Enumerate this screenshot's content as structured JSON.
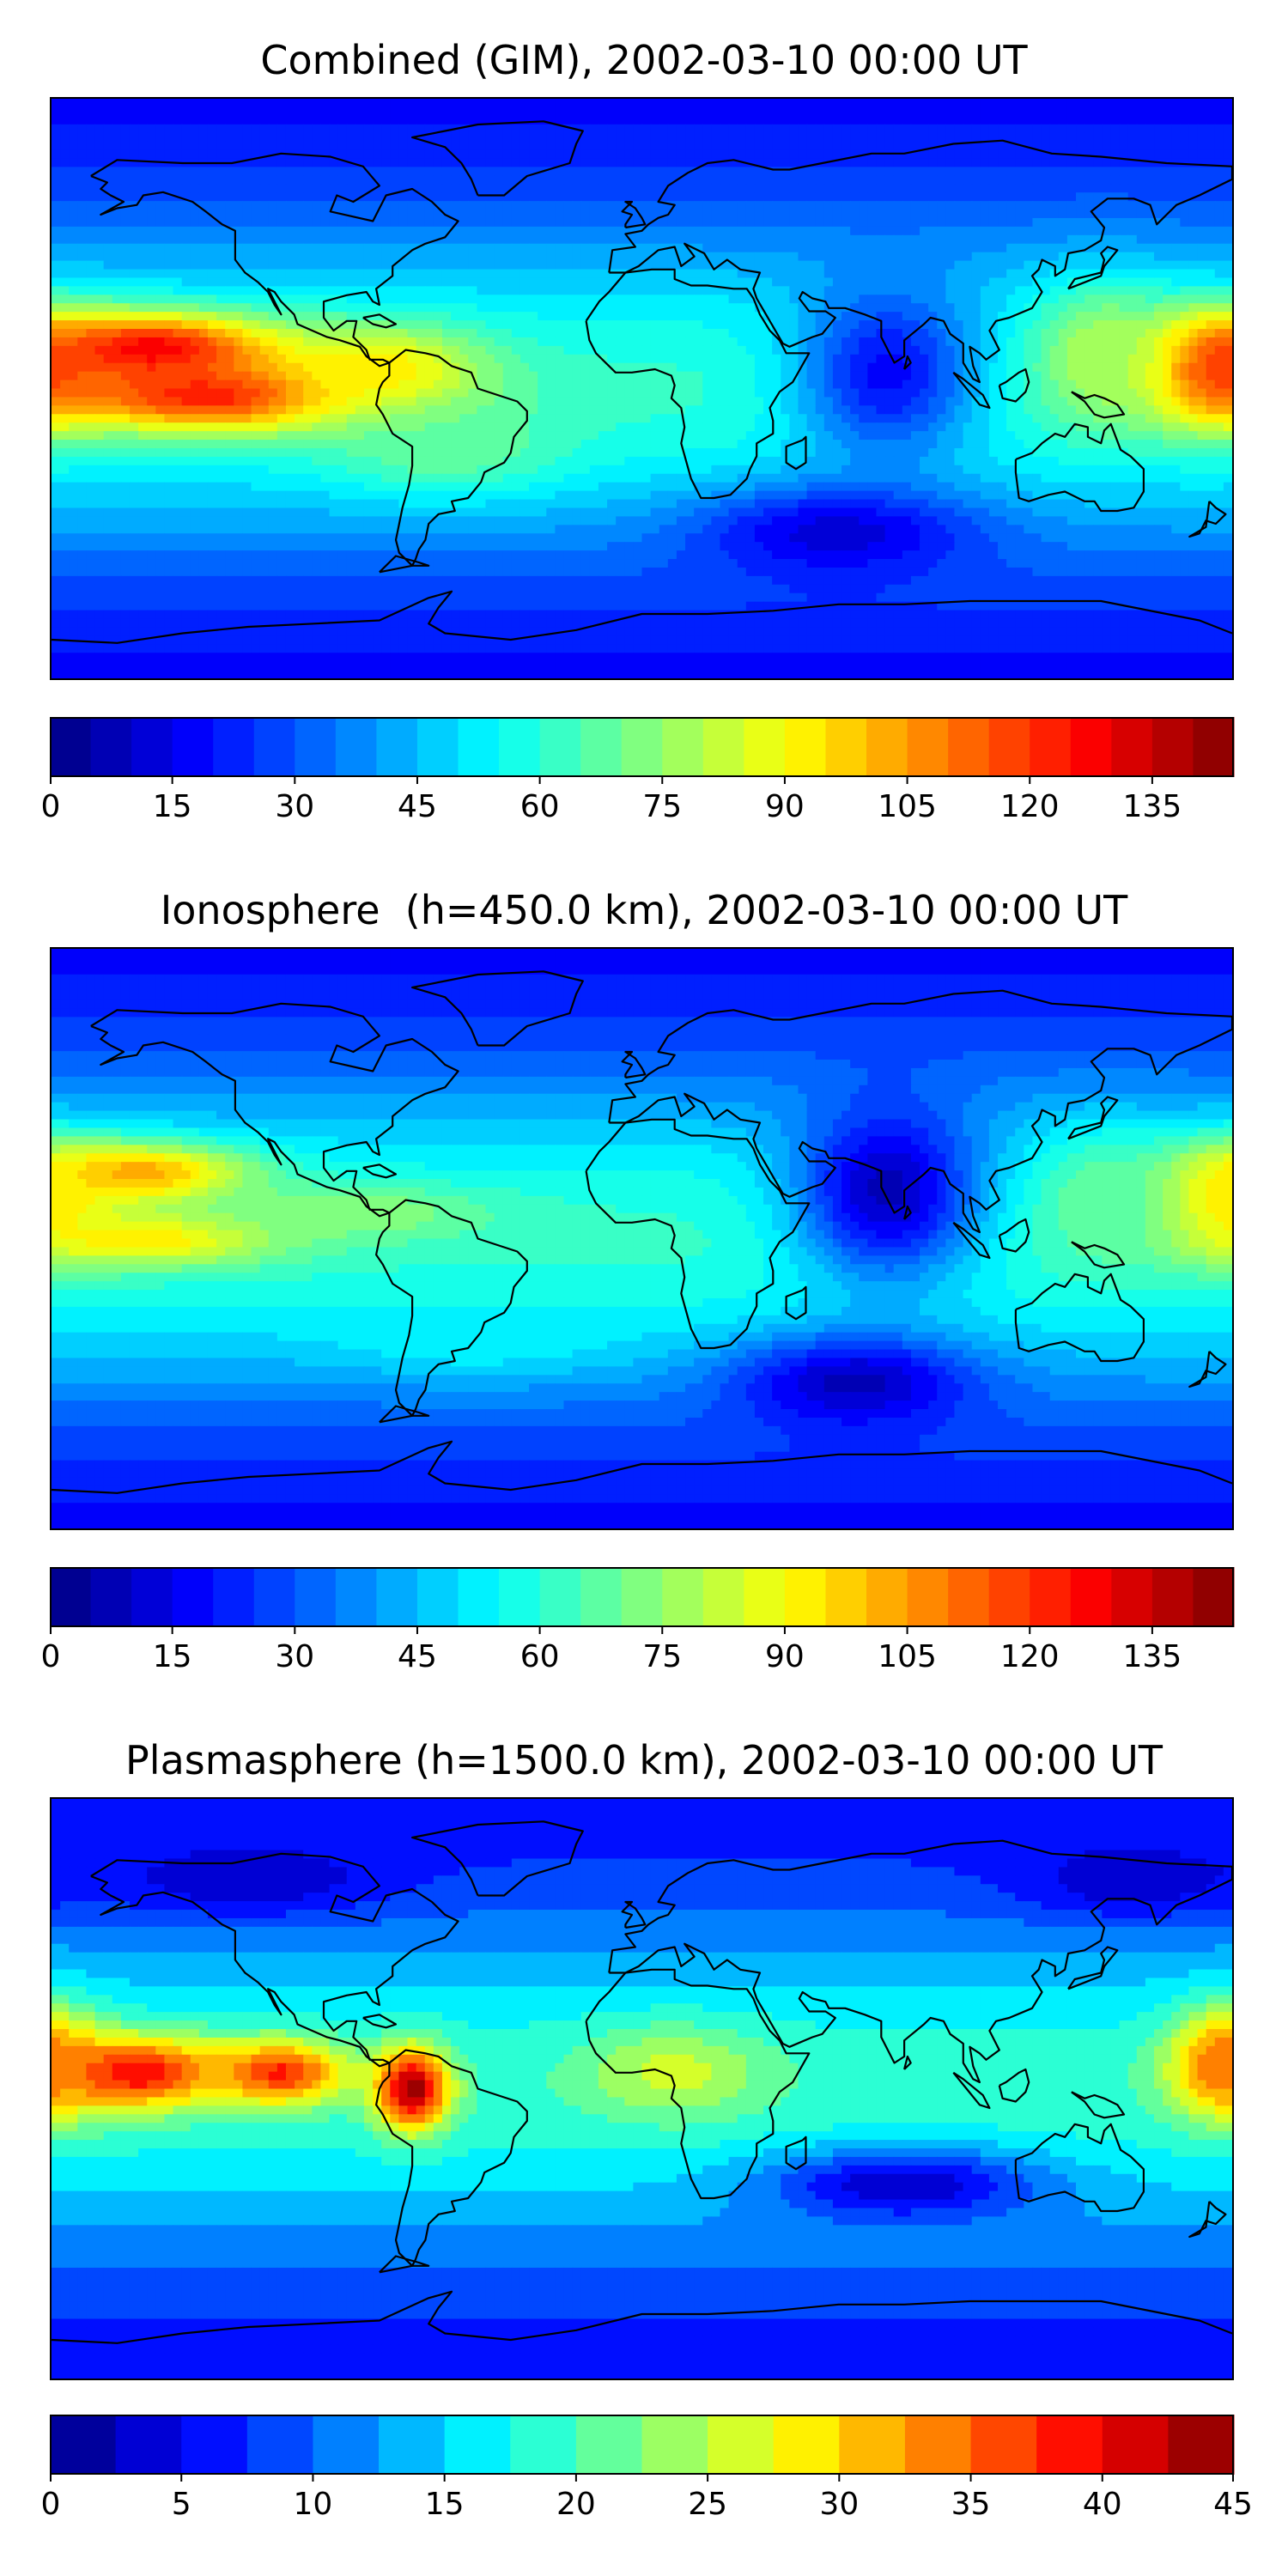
{
  "chart_data": [
    {
      "type": "heatmap",
      "title": "Combined (GIM), 2002-03-10 00:00 UT",
      "colormap": "jet",
      "colorbar": {
        "min": 0,
        "max": 145,
        "levels": 29,
        "ticks": [
          0,
          15,
          30,
          45,
          60,
          75,
          90,
          105,
          120,
          135
        ]
      },
      "field_features": [
        {
          "lon": -150,
          "lat": 12,
          "value": 130,
          "sigma_lon": 28,
          "sigma_lat": 8
        },
        {
          "lon": -130,
          "lat": -2,
          "value": 125,
          "sigma_lon": 34,
          "sigma_lat": 8
        },
        {
          "lon": -80,
          "lat": 5,
          "value": 95,
          "sigma_lon": 22,
          "sigma_lat": 10
        },
        {
          "lon": 175,
          "lat": 6,
          "value": 120,
          "sigma_lon": 16,
          "sigma_lat": 12
        },
        {
          "lon": 140,
          "lat": 10,
          "value": 80,
          "sigma_lon": 15,
          "sigma_lat": 15
        },
        {
          "lon": -60,
          "lat": -18,
          "value": 70,
          "sigma_lon": 25,
          "sigma_lat": 10
        },
        {
          "lon": 60,
          "lat": -45,
          "value": 12,
          "sigma_lon": 30,
          "sigma_lat": 10
        },
        {
          "lon": 75,
          "lat": 5,
          "value": 18,
          "sigma_lon": 20,
          "sigma_lat": 20
        }
      ]
    },
    {
      "type": "heatmap",
      "title": "Ionosphere  (h=450.0 km), 2002-03-10 00:00 UT",
      "colormap": "jet",
      "colorbar": {
        "min": 0,
        "max": 145,
        "levels": 29,
        "ticks": [
          0,
          15,
          30,
          45,
          60,
          75,
          90,
          105,
          120,
          135
        ]
      },
      "field_features": [
        {
          "lon": -155,
          "lat": 20,
          "value": 105,
          "sigma_lon": 25,
          "sigma_lat": 7
        },
        {
          "lon": -150,
          "lat": 0,
          "value": 95,
          "sigma_lon": 28,
          "sigma_lat": 6
        },
        {
          "lon": -90,
          "lat": 8,
          "value": 75,
          "sigma_lon": 30,
          "sigma_lat": 6
        },
        {
          "lon": 178,
          "lat": 12,
          "value": 95,
          "sigma_lon": 15,
          "sigma_lat": 12
        },
        {
          "lon": 140,
          "lat": 12,
          "value": 70,
          "sigma_lon": 15,
          "sigma_lat": 14
        },
        {
          "lon": -50,
          "lat": -30,
          "value": 55,
          "sigma_lon": 30,
          "sigma_lat": 8
        },
        {
          "lon": 75,
          "lat": 15,
          "value": 8,
          "sigma_lon": 20,
          "sigma_lat": 20
        },
        {
          "lon": 65,
          "lat": -45,
          "value": 8,
          "sigma_lon": 25,
          "sigma_lat": 10
        }
      ]
    },
    {
      "type": "heatmap",
      "title": "Plasmasphere (h=1500.0 km), 2002-03-10 00:00 UT",
      "colormap": "jet",
      "colorbar": {
        "min": 0,
        "max": 45,
        "levels": 18,
        "ticks": [
          0,
          5,
          10,
          15,
          20,
          25,
          30,
          35,
          40,
          45
        ]
      },
      "field_features": [
        {
          "lon": -155,
          "lat": 5,
          "value": 40,
          "sigma_lon": 20,
          "sigma_lat": 8
        },
        {
          "lon": -110,
          "lat": 5,
          "value": 38,
          "sigma_lon": 14,
          "sigma_lat": 7
        },
        {
          "lon": -70,
          "lat": 0,
          "value": 44,
          "sigma_lon": 8,
          "sigma_lat": 9
        },
        {
          "lon": 178,
          "lat": 8,
          "value": 35,
          "sigma_lon": 12,
          "sigma_lat": 12
        },
        {
          "lon": 10,
          "lat": 5,
          "value": 26,
          "sigma_lon": 20,
          "sigma_lat": 10
        },
        {
          "lon": 80,
          "lat": -30,
          "value": 3,
          "sigma_lon": 30,
          "sigma_lat": 8
        },
        {
          "lon": -120,
          "lat": 65,
          "value": 3,
          "sigma_lon": 30,
          "sigma_lat": 8
        },
        {
          "lon": 150,
          "lat": 65,
          "value": 3,
          "sigma_lon": 25,
          "sigma_lat": 8
        }
      ]
    }
  ]
}
